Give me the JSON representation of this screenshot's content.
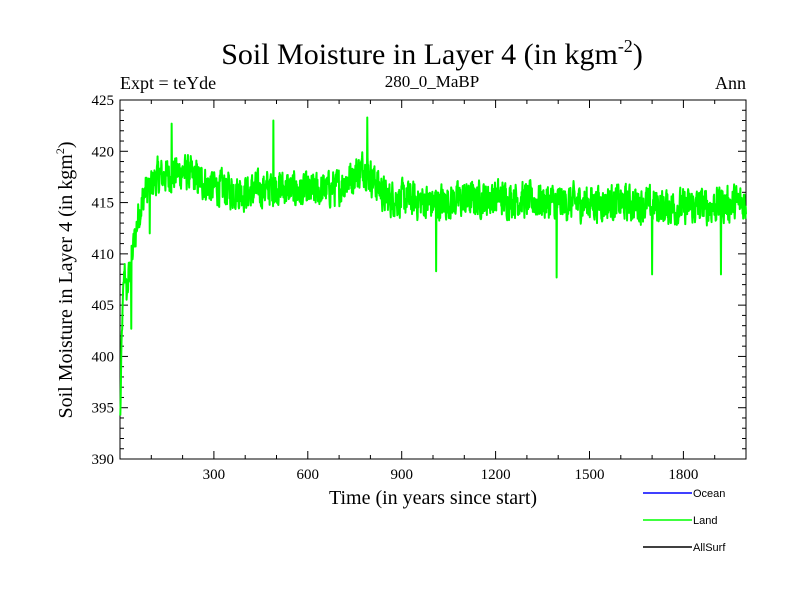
{
  "chart_data": {
    "type": "line",
    "title": "Soil Moisture in Layer 4 (in kgm",
    "title_sup": "-2",
    "title_close": ")",
    "subtitle_left": "Expt = teYde",
    "subtitle_center": "280_0_MaBP",
    "subtitle_right": "Ann",
    "xlabel": "Time (in years since start)",
    "ylabel": "Soil Moisture in Layer 4 (in kgm",
    "ylabel_sup": "2",
    "ylabel_close": ")",
    "xlim": [
      0,
      2000
    ],
    "ylim": [
      390,
      425
    ],
    "x_ticks": [
      300,
      600,
      900,
      1200,
      1500,
      1800
    ],
    "y_ticks": [
      390,
      395,
      400,
      405,
      410,
      415,
      420,
      425
    ],
    "grid": false,
    "legend_position": "bottom-right, below plot",
    "series": [
      {
        "name": "Ocean",
        "color": "#0000ff",
        "values": []
      },
      {
        "name": "Land",
        "color": "#00ff00",
        "x_start": 1,
        "x_step": 1,
        "n_points": 2000,
        "noise_amplitude": 2.4,
        "control_points": [
          [
            1,
            394
          ],
          [
            5,
            401
          ],
          [
            10,
            406
          ],
          [
            15,
            409
          ],
          [
            20,
            406
          ],
          [
            30,
            408
          ],
          [
            45,
            411
          ],
          [
            60,
            414
          ],
          [
            80,
            416
          ],
          [
            120,
            417.5
          ],
          [
            200,
            418
          ],
          [
            300,
            416.5
          ],
          [
            400,
            416
          ],
          [
            500,
            416.5
          ],
          [
            600,
            416
          ],
          [
            700,
            416.5
          ],
          [
            780,
            418.5
          ],
          [
            850,
            415.5
          ],
          [
            1000,
            415
          ],
          [
            1200,
            415.5
          ],
          [
            1400,
            415
          ],
          [
            1600,
            415
          ],
          [
            1800,
            414.5
          ],
          [
            2000,
            415
          ]
        ],
        "extremes": [
          [
            36,
            402.7
          ],
          [
            95,
            412
          ],
          [
            165,
            422.7
          ],
          [
            490,
            423
          ],
          [
            790,
            423.3
          ],
          [
            1010,
            408.3
          ],
          [
            1395,
            407.7
          ],
          [
            1700,
            408
          ],
          [
            1920,
            408
          ]
        ]
      },
      {
        "name": "AllSurf",
        "color": "#000000",
        "values": []
      }
    ]
  }
}
